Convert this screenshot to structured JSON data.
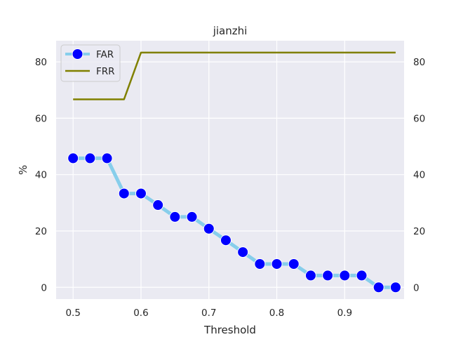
{
  "chart_data": {
    "type": "line",
    "title": "jianzhi",
    "xlabel": "Threshold",
    "ylabel": "%",
    "xlim": [
      0.475,
      0.9875
    ],
    "ylim": [
      -4.17,
      87.5
    ],
    "x_ticks": [
      "0.5",
      "0.6",
      "0.7",
      "0.8",
      "0.9"
    ],
    "x_tick_values": [
      0.5,
      0.6,
      0.7,
      0.8,
      0.9
    ],
    "y_ticks": [
      "0",
      "20",
      "40",
      "60",
      "80"
    ],
    "y_tick_values": [
      0,
      20,
      40,
      60,
      80
    ],
    "right_y_ticks": [
      "0",
      "20",
      "40",
      "60",
      "80"
    ],
    "grid": true,
    "legend_position": "top-left",
    "series": [
      {
        "name": "FAR",
        "color": "#87ceeb",
        "marker_color": "#0000ff",
        "x": [
          0.5,
          0.525,
          0.55,
          0.575,
          0.6,
          0.625,
          0.65,
          0.675,
          0.7,
          0.725,
          0.75,
          0.775,
          0.8,
          0.825,
          0.85,
          0.875,
          0.9,
          0.925,
          0.95,
          0.975
        ],
        "values": [
          45.8,
          45.8,
          45.8,
          33.3,
          33.3,
          29.2,
          25.0,
          25.0,
          20.8,
          16.7,
          12.5,
          8.3,
          8.3,
          8.3,
          4.2,
          4.2,
          4.2,
          4.2,
          0.0,
          0.0
        ]
      },
      {
        "name": "FRR",
        "color": "#808000",
        "x": [
          0.5,
          0.525,
          0.55,
          0.575,
          0.6,
          0.625,
          0.65,
          0.675,
          0.7,
          0.725,
          0.75,
          0.775,
          0.8,
          0.825,
          0.85,
          0.875,
          0.9,
          0.925,
          0.95,
          0.975
        ],
        "values": [
          66.7,
          66.7,
          66.7,
          66.7,
          83.3,
          83.3,
          83.3,
          83.3,
          83.3,
          83.3,
          83.3,
          83.3,
          83.3,
          83.3,
          83.3,
          83.3,
          83.3,
          83.3,
          83.3,
          83.3
        ]
      }
    ]
  }
}
